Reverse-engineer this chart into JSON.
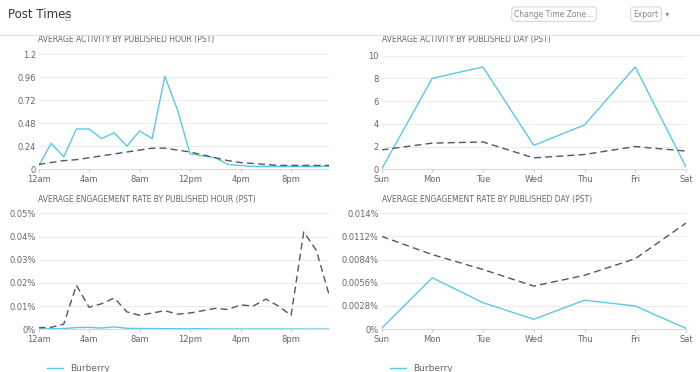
{
  "title": "Post Times",
  "bg_color": "#ffffff",
  "top_left": {
    "title": "AVERAGE ACTIVITY BY PUBLISHED HOUR (PST)",
    "x_labels": [
      "12am",
      "4am",
      "8am",
      "12pm",
      "4pm",
      "8pm"
    ],
    "x_ticks": [
      0,
      4,
      8,
      12,
      16,
      20
    ],
    "burberry": [
      0.03,
      0.27,
      0.13,
      0.42,
      0.42,
      0.32,
      0.38,
      0.24,
      0.4,
      0.32,
      0.97,
      0.62,
      0.16,
      0.14,
      0.12,
      0.05,
      0.04,
      0.03,
      0.03,
      0.03,
      0.03,
      0.03,
      0.03,
      0.03
    ],
    "landscape": [
      0.05,
      0.07,
      0.09,
      0.1,
      0.12,
      0.14,
      0.16,
      0.18,
      0.2,
      0.22,
      0.22,
      0.2,
      0.18,
      0.15,
      0.12,
      0.09,
      0.07,
      0.06,
      0.05,
      0.04,
      0.04,
      0.04,
      0.04,
      0.04
    ],
    "y_ticks": [
      0,
      0.24,
      0.48,
      0.72,
      0.96,
      1.2
    ],
    "y_max": 1.28
  },
  "top_right": {
    "title": "AVERAGE ACTIVITY BY PUBLISHED DAY (PST)",
    "x_labels": [
      "Sun",
      "Mon",
      "Tue",
      "Wed",
      "Thu",
      "Fri",
      "Sat"
    ],
    "burberry": [
      0.0,
      8.0,
      9.0,
      2.1,
      3.9,
      9.0,
      0.2
    ],
    "landscape": [
      1.7,
      2.3,
      2.4,
      1.0,
      1.3,
      2.0,
      1.6
    ],
    "y_ticks": [
      0,
      2,
      4,
      6,
      8,
      10
    ],
    "y_max": 10.8
  },
  "bot_left": {
    "title": "AVERAGE ENGAGEMENT RATE BY PUBLISHED HOUR (PST)",
    "x_labels": [
      "12am",
      "4am",
      "8am",
      "12pm",
      "4pm",
      "8pm"
    ],
    "x_ticks": [
      0,
      4,
      8,
      12,
      16,
      20
    ],
    "burberry": [
      0.0001,
      0.0002,
      0.0003,
      0.0007,
      0.0008,
      0.0005,
      0.001,
      0.0004,
      0.0003,
      0.0003,
      0.0002,
      0.0002,
      0.0002,
      0.0002,
      0.0001,
      0.0001,
      0.0001,
      0.0001,
      0.0001,
      0.0001,
      0.0001,
      5e-05,
      5e-05,
      5e-05
    ],
    "landscape": [
      0.0007,
      0.0008,
      0.0022,
      0.019,
      0.0095,
      0.011,
      0.0135,
      0.0075,
      0.006,
      0.007,
      0.008,
      0.0065,
      0.007,
      0.008,
      0.009,
      0.0085,
      0.0105,
      0.01,
      0.013,
      0.01,
      0.006,
      0.042,
      0.034,
      0.015
    ],
    "y_ticks": [
      0,
      0.01,
      0.02,
      0.03,
      0.04,
      0.05
    ],
    "y_max": 0.053,
    "y_labels": [
      "0%",
      "0.01%",
      "0.02%",
      "0.03%",
      "0.04%",
      "0.05%"
    ]
  },
  "bot_right": {
    "title": "AVERAGE ENGAGEMENT RATE BY PUBLISHED DAY (PST)",
    "x_labels": [
      "Sun",
      "Mon",
      "Tue",
      "Wed",
      "Thu",
      "Fri",
      "Sat"
    ],
    "burberry": [
      0.0001,
      0.0062,
      0.0032,
      0.0012,
      0.0035,
      0.0028,
      0.0001
    ],
    "landscape": [
      0.0112,
      0.009,
      0.0072,
      0.0052,
      0.0065,
      0.0085,
      0.0128
    ],
    "y_ticks": [
      0,
      0.0028,
      0.0056,
      0.0084,
      0.0112,
      0.014
    ],
    "y_max": 0.0148,
    "y_labels": [
      "0%",
      "0.0028%",
      "0.0056%",
      "0.0084%",
      "0.0112%",
      "0.014%"
    ]
  },
  "burberry_color": "#5bc8e8",
  "landscape_color": "#555566",
  "grid_color": "#e8e8e8",
  "text_color": "#666666",
  "title_color": "#333333",
  "subtitle_fontsize": 5.5,
  "tick_fontsize": 6.0,
  "legend_fontsize": 6.5,
  "header_fontsize": 8.5
}
